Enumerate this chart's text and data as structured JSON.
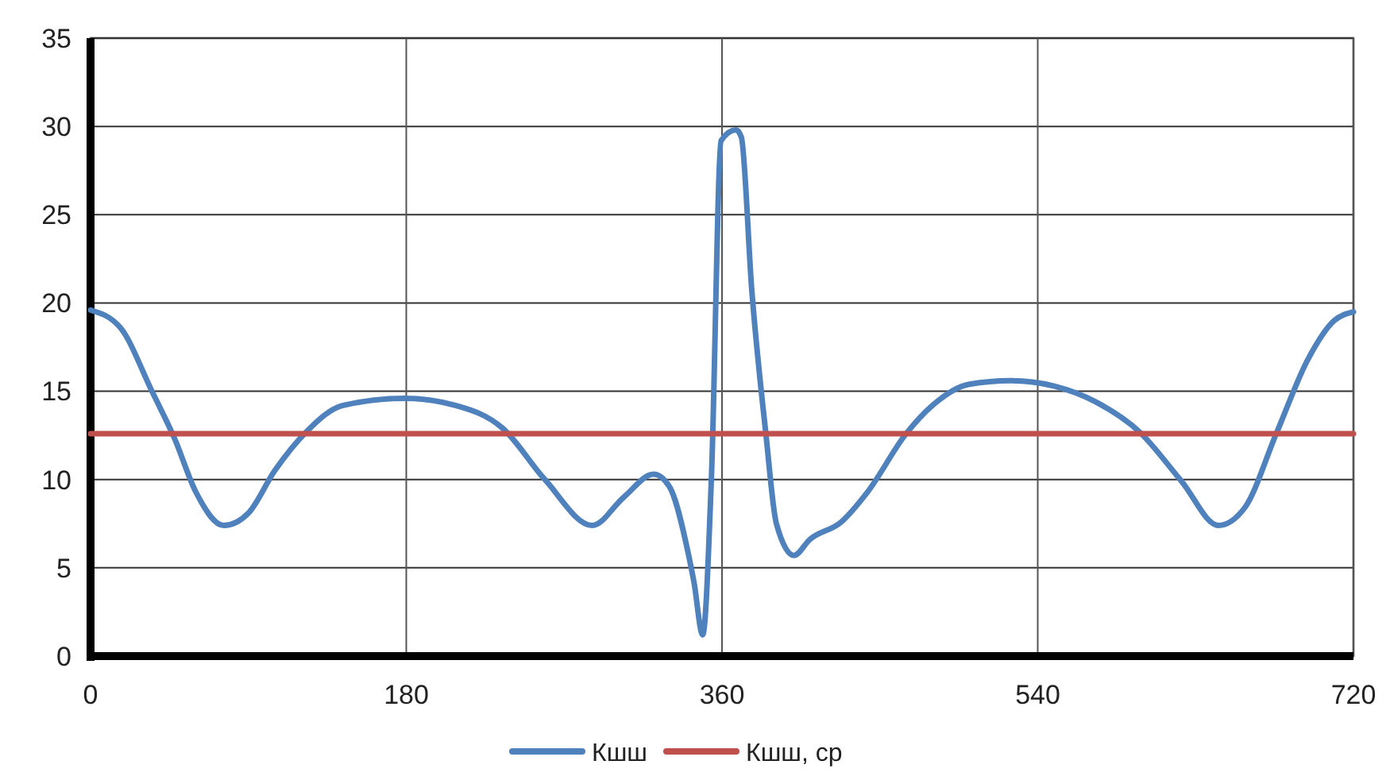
{
  "chart_data": {
    "type": "line",
    "xlim": [
      0,
      720
    ],
    "xticks": [
      0,
      180,
      360,
      540,
      720
    ],
    "ylim": [
      0,
      35
    ],
    "yticks": [
      0,
      5,
      10,
      15,
      20,
      25,
      30,
      35
    ],
    "grid": true,
    "legend": "bottom",
    "line_style": "solid",
    "marker": "none",
    "series": [
      {
        "name": "Кшш",
        "color": "#4f81bd",
        "x": [
          0,
          17,
          35,
          48,
          60,
          76,
          90,
          105,
          123,
          144,
          179,
          208,
          235,
          259,
          286,
          304,
          321,
          330,
          341,
          344,
          349,
          354,
          359.5,
          368,
          371,
          377,
          385,
          391,
          401,
          410,
          428,
          443,
          465,
          480,
          501,
          525,
          549,
          573,
          598,
          622,
          643,
          658,
          676,
          694,
          709,
          720
        ],
        "values": [
          19.6,
          18.6,
          15.0,
          12.3,
          9.3,
          7.4,
          8.1,
          10.5,
          12.7,
          14.2,
          14.6,
          14.2,
          12.9,
          10.0,
          7.4,
          9.0,
          10.3,
          9.6,
          5.7,
          4.2,
          1.2,
          10.2,
          29.2,
          29.8,
          29.4,
          20.7,
          12.6,
          7.5,
          5.7,
          6.6,
          7.6,
          9.3,
          12.6,
          14.2,
          15.4,
          15.6,
          15.3,
          14.4,
          12.7,
          9.9,
          7.4,
          8.4,
          12.6,
          16.8,
          19.0,
          19.5
        ]
      },
      {
        "name": "Кшш, ср",
        "color": "#c0504d",
        "x": [
          0,
          720
        ],
        "values": [
          12.6,
          12.6
        ]
      }
    ]
  }
}
